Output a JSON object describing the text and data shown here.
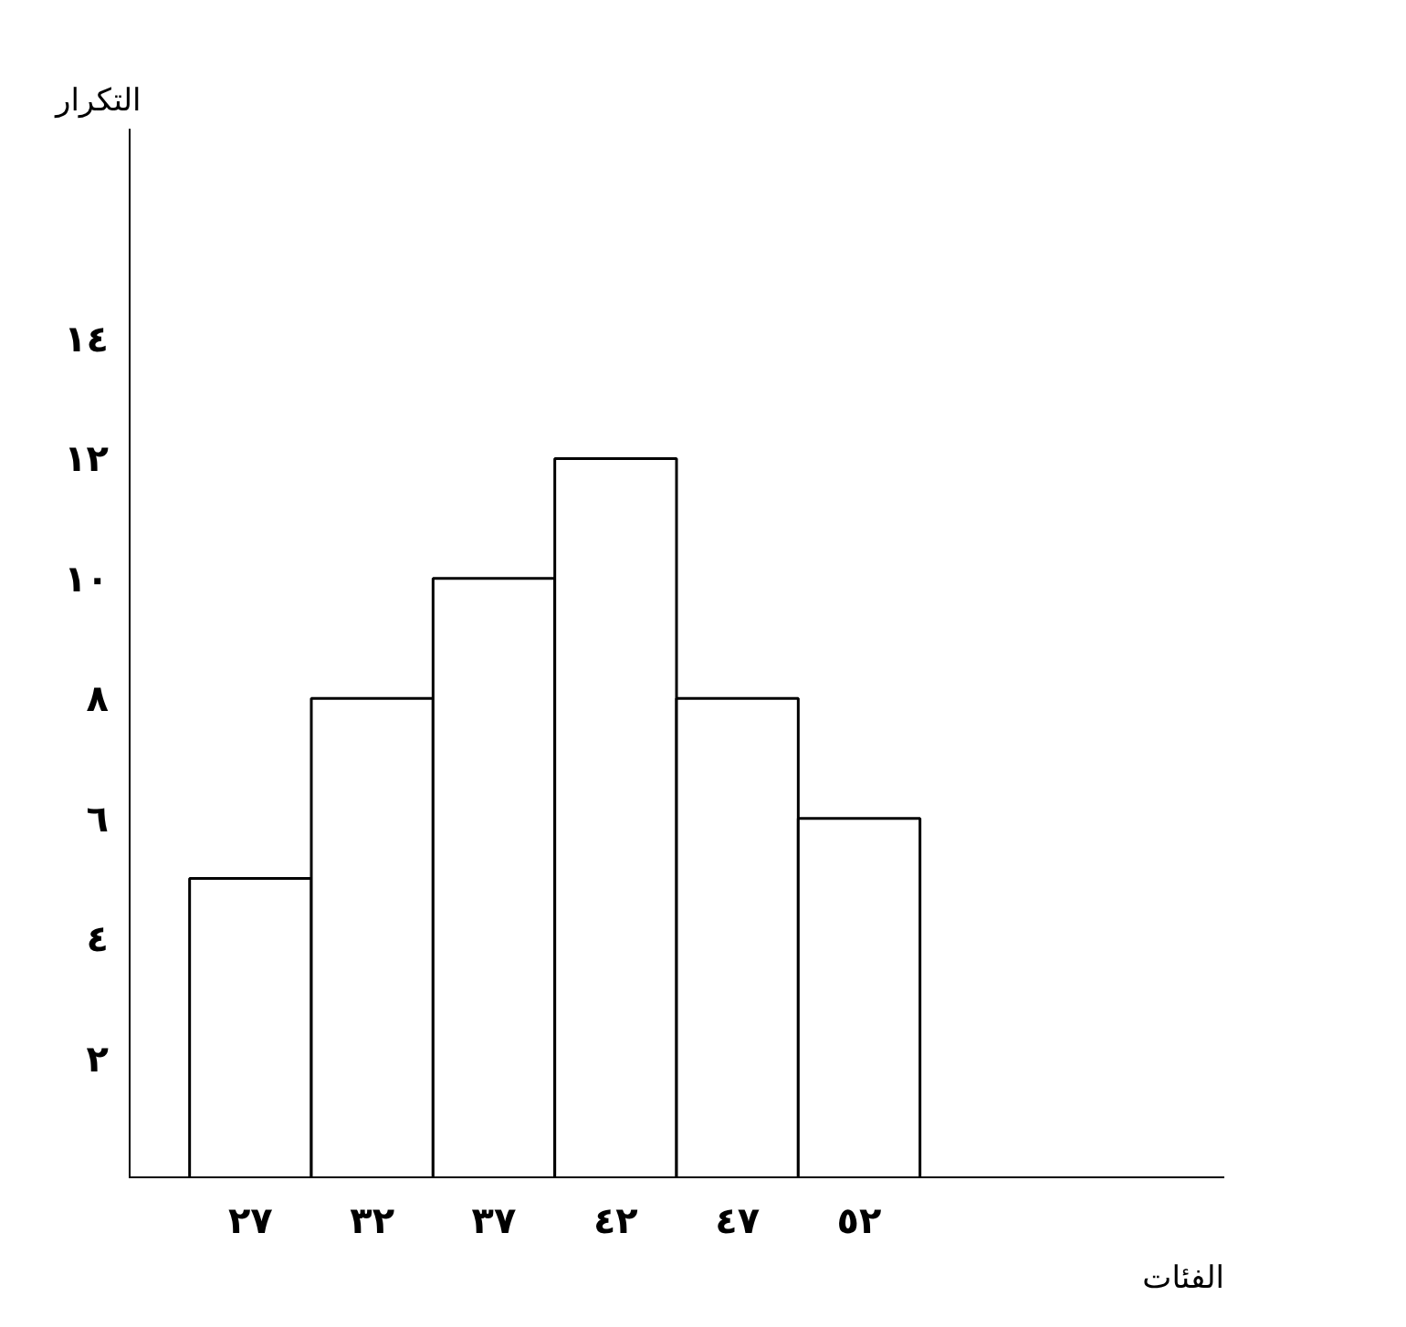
{
  "chart_data": {
    "type": "histogram",
    "xlabel": "الفئات",
    "ylabel": "التكرار",
    "bins": [
      24.5,
      29.5,
      34.5,
      39.5,
      44.5,
      49.5,
      54.5
    ],
    "values": [
      5,
      8,
      10,
      12,
      8,
      6
    ],
    "color": "#000000",
    "xlim": [
      22,
      67
    ],
    "ylim": [
      0,
      17.5
    ],
    "xticks": [
      {
        "value": 27,
        "label": "٢٧"
      },
      {
        "value": 32,
        "label": "٣٢"
      },
      {
        "value": 37,
        "label": "٣٧"
      },
      {
        "value": 42,
        "label": "٤٢"
      },
      {
        "value": 47,
        "label": "٤٧"
      },
      {
        "value": 52,
        "label": "٥٢"
      }
    ],
    "yticks": [
      {
        "value": 2,
        "label": "٢"
      },
      {
        "value": 4,
        "label": "٤"
      },
      {
        "value": 6,
        "label": "٦"
      },
      {
        "value": 8,
        "label": "٨"
      },
      {
        "value": 10,
        "label": "١٠"
      },
      {
        "value": 12,
        "label": "١٢"
      },
      {
        "value": 14,
        "label": "١٤"
      }
    ],
    "grid": false
  }
}
